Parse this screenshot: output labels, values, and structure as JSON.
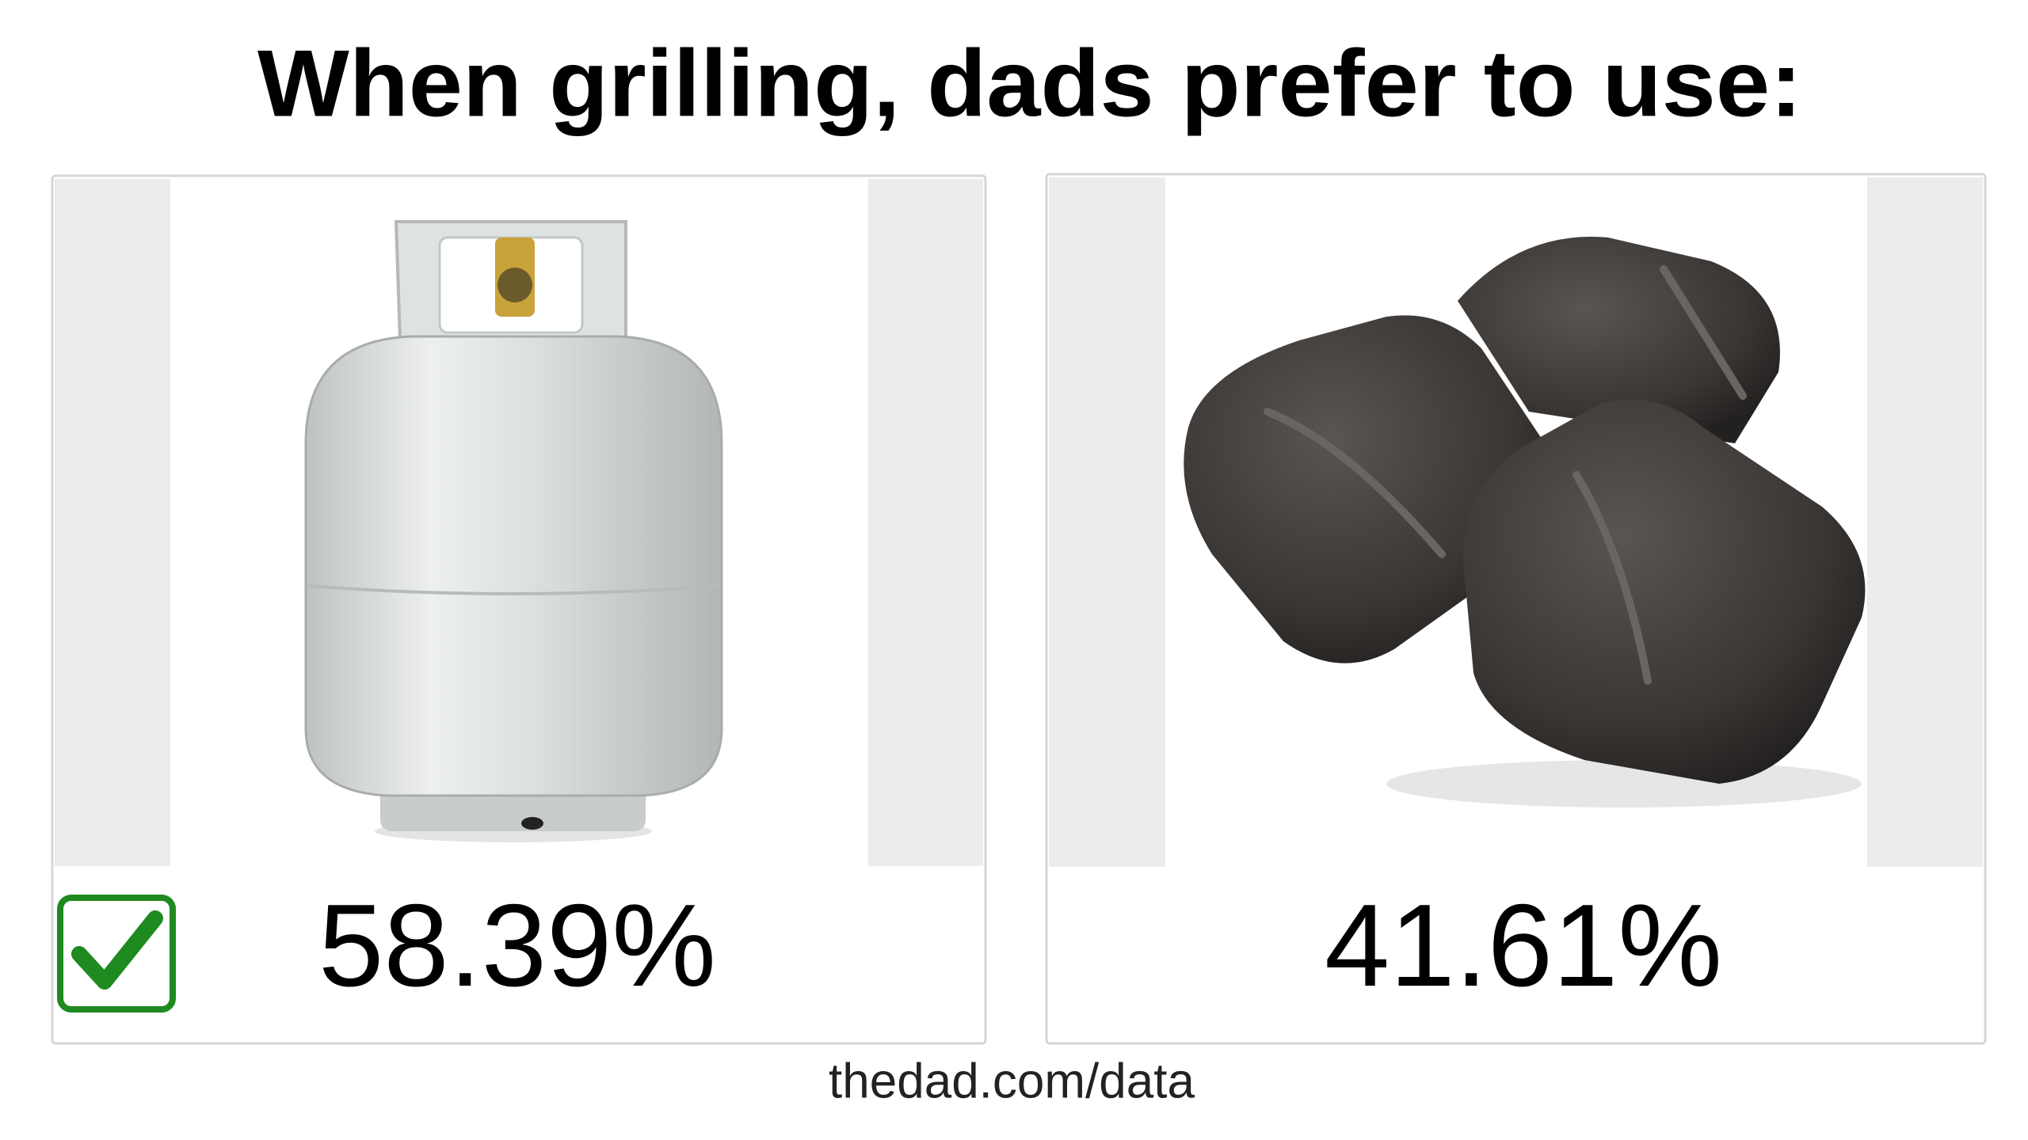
{
  "header": {
    "title": "When grilling, dads prefer to use:"
  },
  "options": [
    {
      "result": "58.39%",
      "winner": true
    },
    {
      "result": "41.61%",
      "winner": false
    }
  ],
  "footer": {
    "source": "thedad.com/data"
  }
}
